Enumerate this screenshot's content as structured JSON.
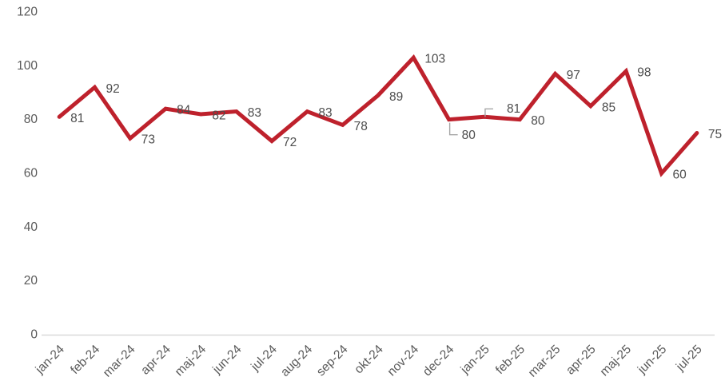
{
  "chart_data": {
    "type": "line",
    "title": "",
    "xlabel": "",
    "ylabel": "",
    "categories": [
      "jan-24",
      "feb-24",
      "mar-24",
      "apr-24",
      "maj-24",
      "jun-24",
      "jul-24",
      "aug-24",
      "sep-24",
      "okt-24",
      "nov-24",
      "dec-24",
      "jan-25",
      "feb-25",
      "mar-25",
      "apr-25",
      "maj-25",
      "jun-25",
      "jul-25"
    ],
    "series": [
      {
        "name": "",
        "values": [
          81,
          92,
          73,
          84,
          82,
          83,
          72,
          83,
          78,
          89,
          103,
          80,
          81,
          80,
          97,
          85,
          98,
          60,
          75
        ]
      }
    ],
    "ylim": [
      0,
      120
    ],
    "yticks": [
      0,
      20,
      40,
      60,
      80,
      100,
      120
    ],
    "grid": false,
    "legend_position": "none",
    "data_labels_visible": true,
    "moved_labels": [
      {
        "index": 11,
        "dx": 16,
        "dy": 20,
        "leader": "down"
      },
      {
        "index": 12,
        "dx": 28,
        "dy": -10,
        "leader": "up"
      }
    ],
    "colors": {
      "line": "#BE212C",
      "data_label": "#4d4d4d",
      "axis_label": "#595959",
      "axis_line": "#D9D9D9",
      "leader_line": "#A6A6A6",
      "background": "#FFFFFF"
    }
  }
}
